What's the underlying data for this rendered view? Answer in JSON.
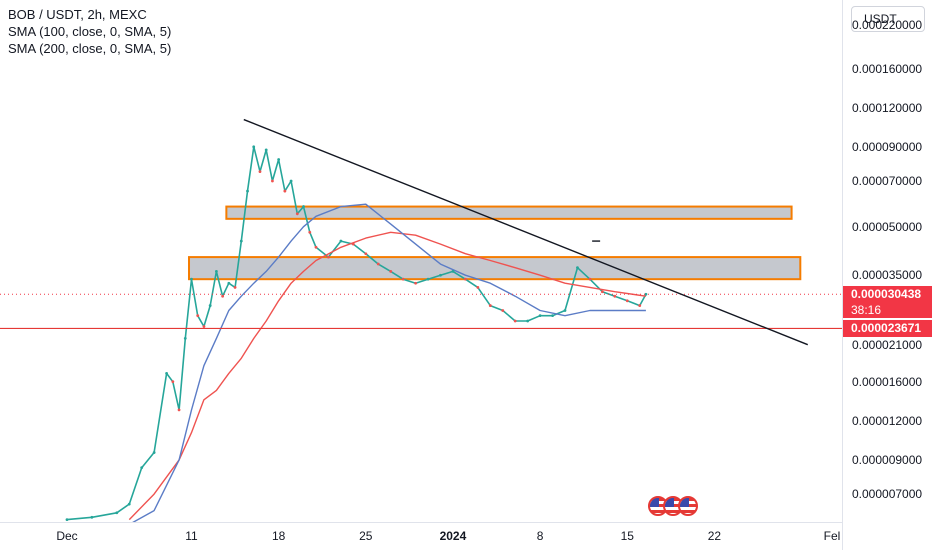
{
  "legend": {
    "symbol": "BOB / USDT, 2h, MEXC",
    "sma1": "SMA (100, close, 0, SMA, 5)",
    "sma2": "SMA (200, close, 0, SMA, 5)"
  },
  "currency_button": "USDT",
  "colors": {
    "up": "#26a69a",
    "down": "#ef5350",
    "sma100": "#ef5350",
    "sma200": "#5b7cc6",
    "trendline": "#131722",
    "zone_fill": "#b2b5be",
    "zone_border": "#f57c00",
    "support_line": "#e53935",
    "current_price_bg": "#f23645"
  },
  "chart_data": {
    "type": "line",
    "title": "BOB / USDT, 2h, MEXC",
    "scale": "log",
    "ylim": [
      5.7e-06,
      0.000265
    ],
    "price_ticks": [
      "0.000220000",
      "0.000160000",
      "0.000120000",
      "0.000090000",
      "0.000070000",
      "0.000050000",
      "0.000035000",
      "0.000021000",
      "0.000016000",
      "0.000012000",
      "0.000009000",
      "0.000007000"
    ],
    "price_tick_values": [
      0.00022,
      0.00016,
      0.00012,
      9e-05,
      7e-05,
      5e-05,
      3.5e-05,
      2.1e-05,
      1.6e-05,
      1.2e-05,
      9e-06,
      7e-06
    ],
    "time_ticks": [
      {
        "label": "Dec",
        "day": 0,
        "bold": false
      },
      {
        "label": "11",
        "day": 10,
        "bold": false
      },
      {
        "label": "18",
        "day": 17,
        "bold": false
      },
      {
        "label": "25",
        "day": 24,
        "bold": false
      },
      {
        "label": "2024",
        "day": 31,
        "bold": true
      },
      {
        "label": "8",
        "day": 38,
        "bold": false
      },
      {
        "label": "15",
        "day": 45,
        "bold": false
      },
      {
        "label": "22",
        "day": 52,
        "bold": false
      },
      {
        "label": "Fel",
        "day": 62,
        "bold": false
      }
    ],
    "current_price": {
      "label": "0.000030438",
      "countdown": "38:16",
      "value": 3.0438e-05
    },
    "support_price": {
      "label": "0.000023671",
      "value": 2.3671e-05
    },
    "series": [
      {
        "name": "BOB / USDT",
        "days": [
          0,
          2,
          4,
          5,
          6,
          7,
          8,
          8.5,
          9,
          9.5,
          10,
          10.5,
          11,
          11.5,
          12,
          12.5,
          13,
          13.5,
          14,
          14.5,
          15,
          15.5,
          16,
          16.5,
          17,
          17.5,
          18,
          18.5,
          19,
          19.5,
          20,
          21,
          22,
          23,
          24,
          25,
          26,
          27,
          28,
          29,
          30,
          31,
          32,
          33,
          34,
          35,
          36,
          37,
          38,
          39,
          40,
          41,
          42,
          43,
          44,
          45,
          46,
          46.5
        ],
        "values": [
          5.8e-06,
          5.9e-06,
          6.1e-06,
          6.5e-06,
          8.5e-06,
          9.5e-06,
          1.7e-05,
          1.6e-05,
          1.3e-05,
          2.2e-05,
          3.4e-05,
          2.6e-05,
          2.4e-05,
          2.8e-05,
          3.6e-05,
          3e-05,
          3.3e-05,
          3.2e-05,
          4.5e-05,
          6.5e-05,
          9e-05,
          7.5e-05,
          8.8e-05,
          7e-05,
          8.2e-05,
          6.5e-05,
          7e-05,
          5.5e-05,
          5.8e-05,
          4.8e-05,
          4.3e-05,
          4e-05,
          4.5e-05,
          4.4e-05,
          4.1e-05,
          3.8e-05,
          3.6e-05,
          3.4e-05,
          3.3e-05,
          3.4e-05,
          3.5e-05,
          3.6e-05,
          3.4e-05,
          3.2e-05,
          2.8e-05,
          2.7e-05,
          2.5e-05,
          2.5e-05,
          2.6e-05,
          2.6e-05,
          2.7e-05,
          3.7e-05,
          3.4e-05,
          3.1e-05,
          3e-05,
          2.9e-05,
          2.8e-05,
          3.0438e-05
        ]
      },
      {
        "name": "SMA (100, close, 0, SMA, 5)",
        "days": [
          5,
          7,
          9,
          10,
          11,
          12,
          13,
          14,
          15,
          16,
          17,
          18,
          19,
          20,
          22,
          24,
          26,
          28,
          30,
          32,
          34,
          36,
          38,
          40,
          42,
          44,
          46.5
        ],
        "values": [
          5.8e-06,
          7e-06,
          9e-06,
          1.1e-05,
          1.4e-05,
          1.5e-05,
          1.7e-05,
          1.9e-05,
          2.2e-05,
          2.5e-05,
          2.9e-05,
          3.3e-05,
          3.6e-05,
          3.9e-05,
          4.3e-05,
          4.6e-05,
          4.8e-05,
          4.7e-05,
          4.4e-05,
          4.1e-05,
          3.9e-05,
          3.7e-05,
          3.5e-05,
          3.3e-05,
          3.2e-05,
          3.1e-05,
          3e-05
        ]
      },
      {
        "name": "SMA (200, close, 0, SMA, 5)",
        "days": [
          5,
          7,
          9,
          10,
          11,
          12,
          13,
          14,
          15,
          16,
          17,
          18,
          19,
          20,
          22,
          24,
          26,
          28,
          30,
          32,
          34,
          36,
          38,
          40,
          42,
          44,
          46.5
        ],
        "values": [
          5.6e-06,
          6.2e-06,
          9e-06,
          1.3e-05,
          1.8e-05,
          2.2e-05,
          2.7e-05,
          3e-05,
          3.3e-05,
          3.6e-05,
          4e-05,
          4.5e-05,
          5e-05,
          5.4e-05,
          5.8e-05,
          5.9e-05,
          5.1e-05,
          4.4e-05,
          3.8e-05,
          3.5e-05,
          3.3e-05,
          3e-05,
          2.7e-05,
          2.6e-05,
          2.7e-05,
          2.7e-05,
          2.7e-05
        ]
      }
    ],
    "trendline": {
      "from": {
        "day": 14.2,
        "value": 0.00011
      },
      "to": {
        "day": 59.5,
        "value": 2.1e-05
      }
    },
    "zones": [
      {
        "day_from": 12.8,
        "day_to": 58.2,
        "low": 5.3e-05,
        "high": 5.8e-05
      },
      {
        "day_from": 9.8,
        "day_to": 58.9,
        "low": 3.4e-05,
        "high": 4e-05
      }
    ],
    "marker": {
      "day": 42.5,
      "value": 4.5e-05
    }
  }
}
